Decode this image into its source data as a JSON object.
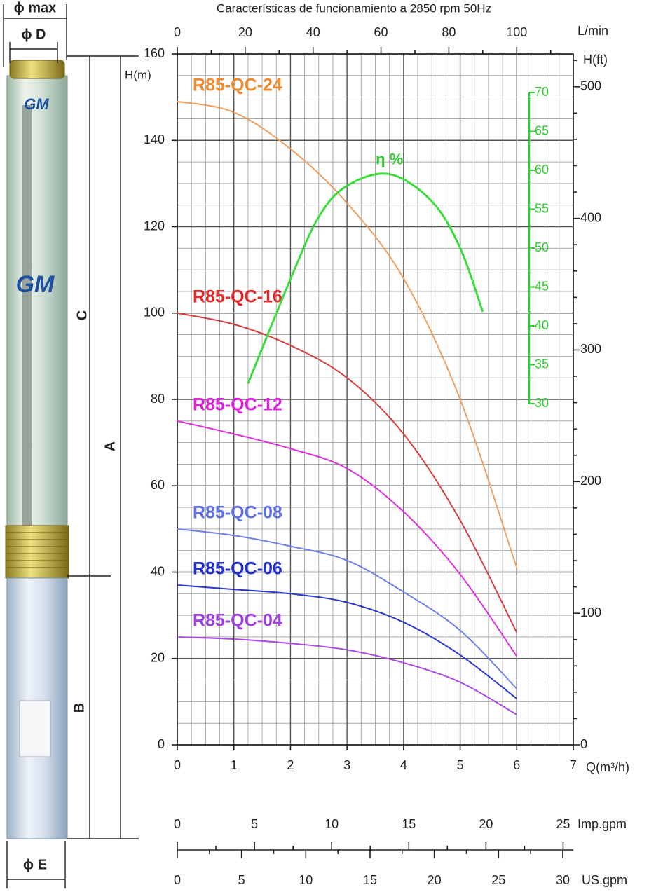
{
  "chart_data": {
    "type": "line",
    "title": "Características de funcionamiento a 2850 rpm 50Hz",
    "x_label": "Q(m³/h)",
    "y_label": "H(m)",
    "xlim": [
      0,
      7
    ],
    "xticks": [
      0,
      1,
      2,
      3,
      4,
      5,
      6,
      7
    ],
    "ylim": [
      0,
      160
    ],
    "yticks": [
      0,
      20,
      40,
      60,
      80,
      100,
      120,
      140,
      160
    ],
    "grid": true,
    "series": [
      {
        "name": "R85-QC-24",
        "color": "#f0a060",
        "label_color": "#f08a30",
        "x": [
          0,
          1,
          2,
          3,
          4,
          5,
          6
        ],
        "values": [
          149,
          146.5,
          138,
          125.5,
          108,
          80,
          41
        ]
      },
      {
        "name": "R85-QC-16",
        "color": "#d84040",
        "label_color": "#e02828",
        "x": [
          0,
          1,
          2,
          3,
          4,
          5,
          6
        ],
        "values": [
          100,
          97.4,
          92.5,
          85,
          72,
          52,
          26
        ]
      },
      {
        "name": "R85-QC-12",
        "color": "#e030e0",
        "label_color": "#e020e0",
        "x": [
          0,
          1,
          2,
          3,
          4,
          5,
          6
        ],
        "values": [
          75,
          72,
          68.6,
          64,
          54,
          39.5,
          20.5
        ]
      },
      {
        "name": "R85-QC-08",
        "color": "#7080ee",
        "label_color": "#6070e8",
        "x": [
          0,
          1,
          2,
          3,
          4,
          5,
          6
        ],
        "values": [
          50,
          48.5,
          46,
          42.7,
          35.4,
          26.5,
          13
        ]
      },
      {
        "name": "R85-QC-06",
        "color": "#2838d0",
        "label_color": "#2030d0",
        "x": [
          0,
          1,
          2,
          3,
          4,
          5,
          6
        ],
        "values": [
          37,
          36,
          35,
          33,
          28.4,
          20.8,
          10.7
        ]
      },
      {
        "name": "R85-QC-04",
        "color": "#a848e8",
        "label_color": "#a040e0",
        "x": [
          0,
          1,
          2,
          3,
          4,
          5,
          6
        ],
        "values": [
          25,
          24.5,
          23.5,
          22,
          19,
          14.5,
          7
        ]
      },
      {
        "name": "η %",
        "color": "#3ddc3d",
        "label_color": "#2ecc2e",
        "axis": "y2",
        "x": [
          1.25,
          2,
          2.5,
          3,
          3.75,
          4.5,
          5,
          5.4
        ],
        "values": [
          32.6,
          46,
          54,
          58,
          59.5,
          56,
          50,
          41.8
        ]
      }
    ],
    "y2lim": [
      30,
      70
    ],
    "y2ticks": [
      30,
      35,
      40,
      45,
      50,
      55,
      60,
      65,
      70
    ],
    "secondary_axes": {
      "flow_lmin": {
        "label": "L/min",
        "lim": [
          0,
          116.67
        ],
        "ticks": [
          0,
          20,
          40,
          60,
          80,
          100
        ]
      },
      "head_ft": {
        "label": "H(ft)",
        "lim": [
          0,
          524.9
        ],
        "ticks": [
          0,
          100,
          200,
          300,
          400,
          500
        ]
      },
      "imp_gpm": {
        "label": "Imp.gpm",
        "lim": [
          0,
          25.66
        ],
        "ticks": [
          0,
          5,
          10,
          15,
          20,
          25
        ]
      },
      "us_gpm": {
        "label": "US.gpm",
        "lim": [
          0,
          30.82
        ],
        "ticks": [
          0,
          5,
          10,
          15,
          20,
          25,
          30
        ]
      }
    }
  },
  "illustration": {
    "brand": "GM",
    "dimensions": {
      "phi_max": "ϕ max",
      "phi_d": "ϕ D",
      "c": "C",
      "a": "A",
      "b": "B",
      "phi_e": "ϕ E"
    }
  }
}
